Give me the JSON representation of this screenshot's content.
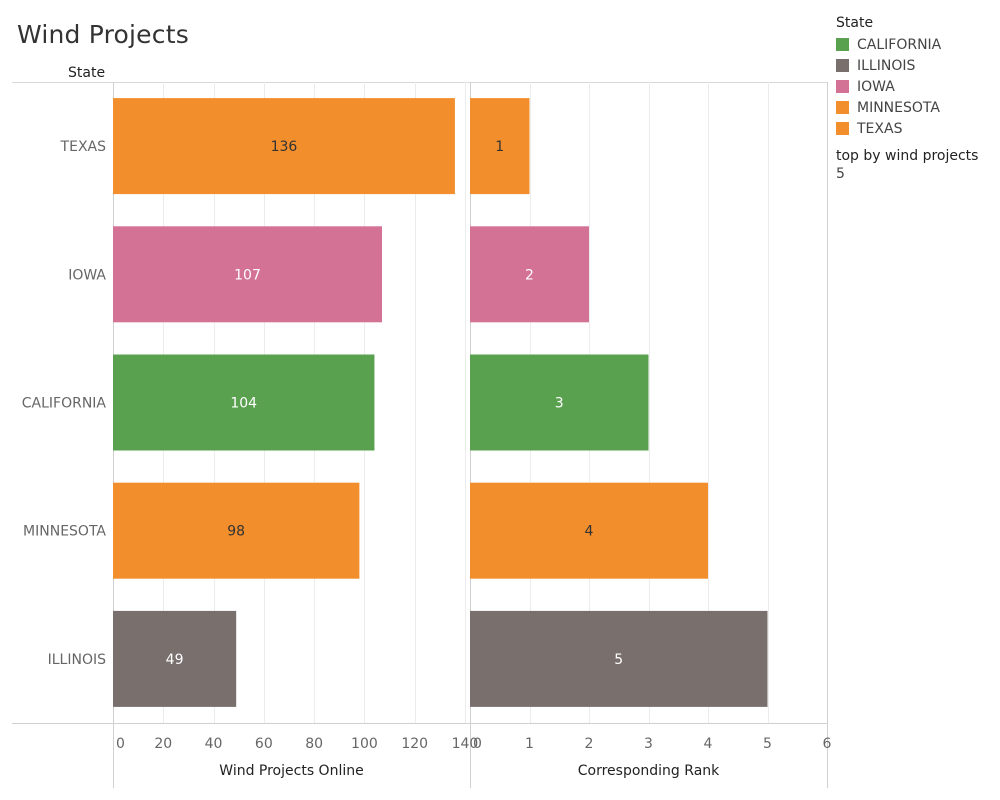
{
  "title": "Wind Projects",
  "legend": {
    "title": "State",
    "items": [
      {
        "label": "CALIFORNIA",
        "color": "#59a14f"
      },
      {
        "label": "ILLINOIS",
        "color": "#79706e"
      },
      {
        "label": "IOWA",
        "color": "#d37295"
      },
      {
        "label": "MINNESOTA",
        "color": "#f28e2b"
      },
      {
        "label": "TEXAS",
        "color": "#f28e2b"
      }
    ]
  },
  "parameter": {
    "label": "top by wind projects",
    "value": "5"
  },
  "chart_data": {
    "type": "bar",
    "orientation": "horizontal",
    "row_header": "State",
    "categories": [
      "TEXAS",
      "IOWA",
      "CALIFORNIA",
      "MINNESOTA",
      "ILLINOIS"
    ],
    "colors": [
      "#f28e2b",
      "#d37295",
      "#59a14f",
      "#f28e2b",
      "#79706e"
    ],
    "label_colors": [
      "#333333",
      "#ffffff",
      "#ffffff",
      "#333333",
      "#ffffff"
    ],
    "panels": [
      {
        "name": "wind-projects-online",
        "axis_title": "Wind Projects Online",
        "values": [
          136,
          107,
          104,
          98,
          49
        ],
        "xlim": [
          0,
          142
        ],
        "ticks": [
          0,
          20,
          40,
          60,
          80,
          100,
          120,
          140
        ]
      },
      {
        "name": "corresponding-rank",
        "axis_title": "Corresponding Rank",
        "values": [
          1,
          2,
          3,
          4,
          5
        ],
        "xlim": [
          0,
          6
        ],
        "ticks": [
          0,
          1,
          2,
          3,
          4,
          5,
          6
        ]
      }
    ],
    "grid": true
  }
}
